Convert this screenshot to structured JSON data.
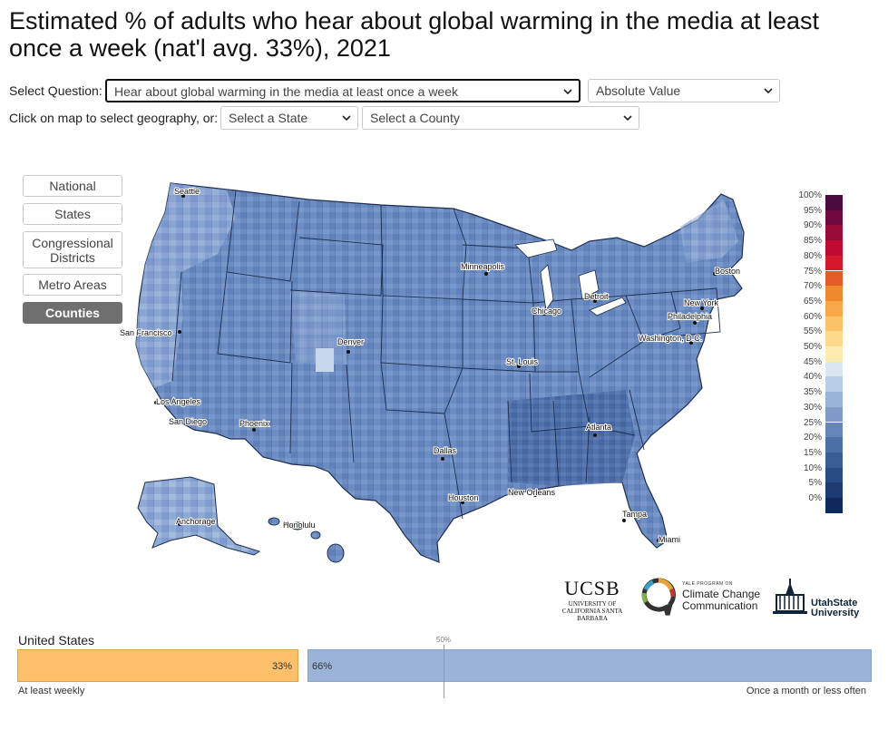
{
  "title": "Estimated % of adults who hear about global warming in the media at least once a week (nat'l avg. 33%), 2021",
  "controls": {
    "question_label": "Select Question:",
    "question_value": "Hear about global warming in the media at least once a week",
    "value_type": "Absolute Value",
    "geo_label": "Click on map to select geography, or:",
    "state_select": "Select a State",
    "county_select": "Select a County"
  },
  "geography_buttons": [
    "National",
    "States",
    "Congressional Districts",
    "Metro Areas",
    "Counties"
  ],
  "selected_geography": "Counties",
  "cities": [
    "Seattle",
    "San Francisco",
    "Los Angeles",
    "San Diego",
    "Phoenix",
    "Denver",
    "Minneapolis",
    "Chicago",
    "Detroit",
    "St. Louis",
    "Dallas",
    "Houston",
    "New Orleans",
    "Atlanta",
    "Tampa",
    "Miami",
    "Washington, D.C.",
    "Philadelphia",
    "New York",
    "Boston",
    "Anchorage",
    "Honolulu"
  ],
  "legend": {
    "labels": [
      "100%",
      "95%",
      "90%",
      "85%",
      "80%",
      "75%",
      "70%",
      "65%",
      "60%",
      "55%",
      "50%",
      "45%",
      "40%",
      "35%",
      "30%",
      "25%",
      "20%",
      "15%",
      "10%",
      "5%",
      "0%"
    ],
    "colors": [
      "#4a0a3e",
      "#6e0a3f",
      "#9a0b3a",
      "#c00a32",
      "#d5192a",
      "#e25a24",
      "#f0892e",
      "#f7a648",
      "#fcc268",
      "#fed98c",
      "#fdebb2",
      "#dbe6f3",
      "#b9cde6",
      "#9ab4d8",
      "#7f9cc9",
      "#6586b9",
      "#4d70a8",
      "#3a5d97",
      "#294b85",
      "#1b3a72",
      "#0e2a5d"
    ]
  },
  "logos": {
    "ucsb": "UCSB",
    "ucsb_sub": "UNIVERSITY OF CALIFORNIA SANTA BARBARA",
    "yale_small": "YALE PROGRAM ON",
    "yale_name": "Climate Change Communication",
    "usu_name": "UtahState University"
  },
  "summary": {
    "geography": "United States",
    "midpoint_label": "50%",
    "left_value": "33%",
    "right_value": "66%",
    "left_fraction": 0.33,
    "right_fraction": 0.66,
    "left_caption": "At least weekly",
    "right_caption": "Once a month or less often",
    "left_color": "#fdc06a",
    "right_color": "#9bb3d6"
  },
  "map_colors": {
    "base": "#6f8fc4",
    "light": "#a9bfdf",
    "dark": "#4b6aa3",
    "borders": "#1f2f4f"
  }
}
